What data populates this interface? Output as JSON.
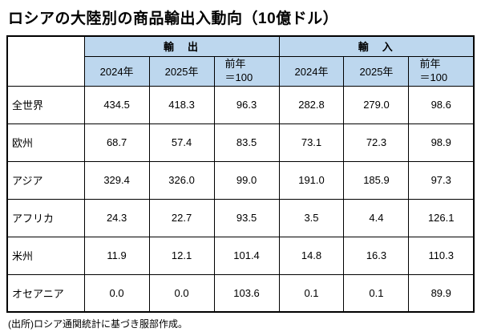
{
  "title": "ロシアの大陸別の商品輸出入動向（10億ドル）",
  "source_note": "(出所)ロシア通関統計に基づき服部作成。",
  "colors": {
    "header_bg": "#BDD7EE",
    "border": "#000000",
    "background": "#FFFFFF"
  },
  "chart_data": {
    "type": "table",
    "title": "ロシアの大陸別の商品輸出入動向（10億ドル）",
    "column_groups": [
      "輸　出",
      "輸　入"
    ],
    "columns": [
      "2024年",
      "2025年",
      "前年\n＝100",
      "2024年",
      "2025年",
      "前年\n＝100"
    ],
    "row_header": "",
    "rows": [
      {
        "label": "全世界",
        "values": [
          "434.5",
          "418.3",
          "96.3",
          "282.8",
          "279.0",
          "98.6"
        ]
      },
      {
        "label": "欧州",
        "values": [
          "68.7",
          "57.4",
          "83.5",
          "73.1",
          "72.3",
          "98.9"
        ]
      },
      {
        "label": "アジア",
        "values": [
          "329.4",
          "326.0",
          "99.0",
          "191.0",
          "185.9",
          "97.3"
        ]
      },
      {
        "label": "アフリカ",
        "values": [
          "24.3",
          "22.7",
          "93.5",
          "3.5",
          "4.4",
          "126.1"
        ]
      },
      {
        "label": "米州",
        "values": [
          "11.9",
          "12.1",
          "101.4",
          "14.8",
          "16.3",
          "110.3"
        ]
      },
      {
        "label": "オセアニア",
        "values": [
          "0.0",
          "0.0",
          "103.6",
          "0.1",
          "0.1",
          "89.9"
        ]
      }
    ],
    "layout": {
      "grid": true,
      "header_background": "#BDD7EE",
      "units": "10億ドル"
    }
  }
}
